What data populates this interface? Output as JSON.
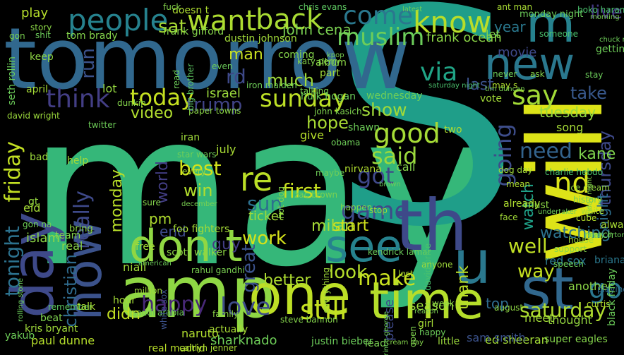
{
  "words": [
    {
      "text": "may",
      "color": "#35b779"
    },
    {
      "text": "S",
      "color": "#1f9e89"
    },
    {
      "text": "tomorrow",
      "color": "#31688e"
    },
    {
      "text": "new",
      "color": "#2a788e"
    },
    {
      "text": "m",
      "color": "#26828e"
    },
    {
      "text": "will",
      "color": "#dde318"
    },
    {
      "text": "day",
      "color": "#3e4989"
    },
    {
      "text": "now",
      "color": "#3b528b"
    },
    {
      "text": "amp",
      "color": "#8fd744"
    },
    {
      "text": "one",
      "color": "#bddf26"
    },
    {
      "text": "time",
      "color": "#b5de2b"
    },
    {
      "text": "st",
      "color": "#31688e"
    },
    {
      "text": "th",
      "color": "#3e4989"
    },
    {
      "text": "u",
      "color": "#2a788e"
    },
    {
      "text": "see",
      "color": "#26828e"
    },
    {
      "text": "don t",
      "color": "#90d743"
    },
    {
      "text": "people",
      "color": "#26828e"
    },
    {
      "text": "want",
      "color": "#addc30"
    },
    {
      "text": "back",
      "color": "#a8db34"
    },
    {
      "text": "come",
      "color": "#2a788e"
    },
    {
      "text": "know",
      "color": "#b8de29"
    },
    {
      "text": "muslim",
      "color": "#6ccd5a"
    },
    {
      "text": "think",
      "color": "#433e85"
    },
    {
      "text": "today",
      "color": "#c5e021"
    },
    {
      "text": "sunday",
      "color": "#bddf26"
    },
    {
      "text": "via",
      "color": "#20a486"
    },
    {
      "text": "say",
      "color": "#a2da37"
    },
    {
      "text": "take",
      "color": "#38588c"
    },
    {
      "text": "good",
      "color": "#a5db36"
    },
    {
      "text": "show",
      "color": "#a0da39"
    },
    {
      "text": "said",
      "color": "#9bd93c"
    },
    {
      "text": "need",
      "color": "#33638d"
    },
    {
      "text": "re",
      "color": "#bbdf27"
    },
    {
      "text": "nd",
      "color": "#dae319"
    },
    {
      "text": "got",
      "color": "#3f4889"
    },
    {
      "text": "going",
      "color": "#3d4d8a"
    },
    {
      "text": "friday",
      "color": "#c2df23"
    },
    {
      "text": "tonight",
      "color": "#2c728e"
    },
    {
      "text": "sun",
      "color": "#2d708e"
    },
    {
      "text": "game",
      "color": "#3e4a89"
    },
    {
      "text": "first",
      "color": "#c8e020"
    },
    {
      "text": "win",
      "color": "#b2dd2d"
    },
    {
      "text": "best",
      "color": "#d2e21b"
    },
    {
      "text": "monday",
      "color": "#b8de29"
    },
    {
      "text": "work",
      "color": "#d5e21a"
    },
    {
      "text": "milan",
      "color": "#a5db36"
    },
    {
      "text": "start",
      "color": "#d0e11c"
    },
    {
      "text": "make",
      "color": "#c8e020"
    },
    {
      "text": "look",
      "color": "#b5de2b"
    },
    {
      "text": "well",
      "color": "#c0df25"
    },
    {
      "text": "way",
      "color": "#c5e021"
    },
    {
      "text": "go",
      "color": "#2a768e"
    },
    {
      "text": "saturday",
      "color": "#b0dd2f"
    },
    {
      "text": "love",
      "color": "#3e4c8a"
    },
    {
      "text": "still",
      "color": "#c5e021"
    },
    {
      "text": "happy",
      "color": "#482878"
    },
    {
      "text": "christian",
      "color": "#2f6b8e"
    },
    {
      "text": "didn",
      "color": "#c2df23"
    },
    {
      "text": "video",
      "color": "#b0dd2f"
    },
    {
      "text": "hope",
      "color": "#a8db34"
    },
    {
      "text": "thank",
      "color": "#bbdf27"
    },
    {
      "text": "watch",
      "color": "#1fa188"
    },
    {
      "text": "really",
      "color": "#3e4989"
    },
    {
      "text": "last",
      "color": "#3b528b"
    },
    {
      "text": "guy",
      "color": "#433e85"
    },
    {
      "text": "israel",
      "color": "#9bd93c"
    },
    {
      "text": "much",
      "color": "#9fda3a"
    },
    {
      "text": "trump",
      "color": "#414487"
    },
    {
      "text": "sat",
      "color": "#a8db34"
    },
    {
      "text": "year",
      "color": "#2a788e"
    },
    {
      "text": "live",
      "color": "#453882"
    },
    {
      "text": "man",
      "color": "#c8e020"
    },
    {
      "text": "better",
      "color": "#addc30"
    },
    {
      "text": "top",
      "color": "#2f6c8e"
    },
    {
      "text": "great",
      "color": "#3b528b"
    },
    {
      "text": "watching",
      "color": "#2c738e"
    },
    {
      "text": "tuesday",
      "color": "#95d840"
    },
    {
      "text": "wednesday",
      "color": "#6ece58"
    },
    {
      "text": "thursday",
      "color": "#3e4989"
    },
    {
      "text": "night",
      "color": "#2e6f8e"
    },
    {
      "text": "islam",
      "color": "#8bd646"
    },
    {
      "text": "end",
      "color": "#3e4989"
    },
    {
      "text": "ticket",
      "color": "#a0da39"
    },
    {
      "text": "pm",
      "color": "#b0dd2f"
    },
    {
      "text": "season",
      "color": "#9bd93c"
    },
    {
      "text": "kane",
      "color": "#7fd34e"
    },
    {
      "text": "world",
      "color": "#433e85"
    },
    {
      "text": "play",
      "color": "#b5de2b"
    },
    {
      "text": "john cena",
      "color": "#7ad151"
    },
    {
      "text": "frank ocean",
      "color": "#8bd646"
    },
    {
      "text": "tom brady",
      "color": "#84d44b"
    },
    {
      "text": "frank gifford",
      "color": "#85d54a"
    },
    {
      "text": "dustin johnson",
      "color": "#a0da39"
    },
    {
      "text": "monday night",
      "color": "#6ccd5a"
    },
    {
      "text": "chris evans",
      "color": "#5ec962"
    },
    {
      "text": "ant man",
      "color": "#a8db34"
    },
    {
      "text": "boko haram",
      "color": "#4ac16d"
    },
    {
      "text": "movie",
      "color": "#3e4989"
    },
    {
      "text": "kris bryant",
      "color": "#9fda3a"
    },
    {
      "text": "paul dunne",
      "color": "#b5de2b"
    },
    {
      "text": "yakub",
      "color": "#6ece58"
    },
    {
      "text": "remember",
      "color": "#5ec962"
    },
    {
      "text": "real madrid",
      "color": "#b8de29"
    },
    {
      "text": "caitlyn jenner",
      "color": "#a8db34"
    },
    {
      "text": "naruto",
      "color": "#b0dd2f"
    },
    {
      "text": "sharknado",
      "color": "#6ece58"
    },
    {
      "text": "justin bieber",
      "color": "#6ccd5a"
    },
    {
      "text": "lead",
      "color": "#7ad151"
    },
    {
      "text": "cream day",
      "color": "#84d44b"
    },
    {
      "text": "ed sheeran",
      "color": "#a2da37"
    },
    {
      "text": "super eagles",
      "color": "#84d44b"
    },
    {
      "text": "little",
      "color": "#9bd93c"
    },
    {
      "text": "foo fighters",
      "color": "#a5db36"
    },
    {
      "text": "scott walker",
      "color": "#8fd744"
    },
    {
      "text": "rahul gandhi",
      "color": "#7ad151"
    },
    {
      "text": "niall",
      "color": "#a0da39"
    },
    {
      "text": "saudi arabia",
      "color": "#6ece58"
    },
    {
      "text": "white sox",
      "color": "#3b528b"
    },
    {
      "text": "steve bannon",
      "color": "#84d44b"
    },
    {
      "text": "kendrick lamar",
      "color": "#6ccd5a"
    },
    {
      "text": "david price",
      "color": "#4ac16d"
    },
    {
      "text": "red sox",
      "color": "#2a788e"
    },
    {
      "text": "briana",
      "color": "#2a788e"
    },
    {
      "text": "thought",
      "color": "#95d840"
    },
    {
      "text": "another",
      "color": "#8bd646"
    },
    {
      "text": "meet",
      "color": "#a2da37"
    },
    {
      "text": "curtis",
      "color": "#b2dd2d"
    },
    {
      "text": "playing",
      "color": "#2f6c8e"
    },
    {
      "text": "august",
      "color": "#8fd744"
    },
    {
      "text": "always",
      "color": "#a8db34"
    },
    {
      "text": "march",
      "color": "#6ece58"
    },
    {
      "text": "already",
      "color": "#addc30"
    },
    {
      "text": "nirvana",
      "color": "#b0dd2f"
    },
    {
      "text": "star wars",
      "color": "#6ece58"
    },
    {
      "text": "july",
      "color": "#a8db34"
    },
    {
      "text": "iran",
      "color": "#9fda3a"
    },
    {
      "text": "zac brown",
      "color": "#7ad151"
    },
    {
      "text": "hot dog",
      "color": "#84d44b"
    },
    {
      "text": "paper towns",
      "color": "#8bd646"
    },
    {
      "text": "john kasich",
      "color": "#7fd34e"
    },
    {
      "text": "hulk hogan",
      "color": "#6ccd5a"
    },
    {
      "text": "david wright",
      "color": "#9bd93c"
    },
    {
      "text": "charlie hebdo",
      "color": "#4ac16d"
    },
    {
      "text": "ice cream",
      "color": "#95d840"
    },
    {
      "text": "obama",
      "color": "#6ece58"
    },
    {
      "text": "give",
      "color": "#b5de2b"
    },
    {
      "text": "two",
      "color": "#addc30"
    },
    {
      "text": "shawn",
      "color": "#6ece58"
    },
    {
      "text": "call",
      "color": "#84d44b"
    },
    {
      "text": "song",
      "color": "#a5db36"
    },
    {
      "text": "vote",
      "color": "#a2da37"
    },
    {
      "text": "anyone",
      "color": "#9fda3a"
    },
    {
      "text": "lost",
      "color": "#a8db34"
    },
    {
      "text": "free",
      "color": "#a5db36"
    },
    {
      "text": "bring",
      "color": "#8bd646"
    },
    {
      "text": "ask",
      "color": "#84d44b"
    },
    {
      "text": "stay",
      "color": "#6ccd5a"
    },
    {
      "text": "getting",
      "color": "#6ece58"
    },
    {
      "text": "let",
      "color": "#84d44b"
    },
    {
      "text": "someone",
      "color": "#4ac16d"
    },
    {
      "text": "doesn t",
      "color": "#addc30"
    },
    {
      "text": "read",
      "color": "#6ccd5a"
    },
    {
      "text": "coming",
      "color": "#84d44b"
    },
    {
      "text": "album",
      "color": "#8bd646"
    },
    {
      "text": "part",
      "color": "#9fda3a"
    },
    {
      "text": "talking",
      "color": "#7ad151"
    },
    {
      "text": "never",
      "color": "#6ece58"
    },
    {
      "text": "rd",
      "color": "#3e4989"
    },
    {
      "text": "even",
      "color": "#6ccd5a"
    },
    {
      "text": "lot",
      "color": "#95d840"
    },
    {
      "text": "iron maiden",
      "color": "#6ece58"
    },
    {
      "text": "big brother",
      "color": "#5ec962"
    },
    {
      "text": "katy perry",
      "color": "#84d44b"
    },
    {
      "text": "kpop",
      "color": "#7ad151"
    },
    {
      "text": "every",
      "color": "#a0da39"
    },
    {
      "text": "hour",
      "color": "#a2da37"
    },
    {
      "text": "talk",
      "color": "#a8db34"
    },
    {
      "text": "team",
      "color": "#84d44b"
    },
    {
      "text": "real",
      "color": "#8bd646"
    },
    {
      "text": "beat",
      "color": "#7fd34e"
    },
    {
      "text": "gt",
      "color": "#95d840"
    },
    {
      "text": "eid",
      "color": "#a5db36"
    },
    {
      "text": "bad",
      "color": "#9bd93c"
    },
    {
      "text": "help",
      "color": "#a0da39"
    },
    {
      "text": "twitter",
      "color": "#6ece58"
    },
    {
      "text": "dunkin",
      "color": "#84d44b"
    },
    {
      "text": "keep",
      "color": "#8fd744"
    },
    {
      "text": "run",
      "color": "#3b528b"
    },
    {
      "text": "story",
      "color": "#8bd646"
    },
    {
      "text": "shit",
      "color": "#6ccd5a"
    },
    {
      "text": "gon",
      "color": "#7ad151"
    },
    {
      "text": "seth rollin",
      "color": "#6ccd5a"
    },
    {
      "text": "april",
      "color": "#a5db36"
    },
    {
      "text": "fuck",
      "color": "#84d44b"
    },
    {
      "text": "latest",
      "color": "#6ccd5a"
    },
    {
      "text": "morning",
      "color": "#7ad151"
    },
    {
      "text": "chuck norris",
      "color": "#6ece58"
    },
    {
      "text": "may s",
      "color": "#b0dd2f"
    },
    {
      "text": "friday night",
      "color": "#84d44b"
    },
    {
      "text": "black friday",
      "color": "#6ccd5a"
    },
    {
      "text": "dog day",
      "color": "#9fda3a"
    },
    {
      "text": "history",
      "color": "#6ece58"
    },
    {
      "text": "cube",
      "color": "#b5de2b"
    },
    {
      "text": "white",
      "color": "#a8db34"
    },
    {
      "text": "face",
      "color": "#a2da37"
    },
    {
      "text": "must",
      "color": "#8bd646"
    },
    {
      "text": "mean",
      "color": "#addc30"
    },
    {
      "text": "happen",
      "color": "#84d44b"
    },
    {
      "text": "stop",
      "color": "#9bd93c"
    },
    {
      "text": "maybe",
      "color": "#6ece58"
    },
    {
      "text": "brown",
      "color": "#6ccd5a"
    },
    {
      "text": "tim duncan",
      "color": "#7ad151"
    },
    {
      "text": "saturday night",
      "color": "#4ac16d"
    },
    {
      "text": "gon na",
      "color": "#6ece58"
    },
    {
      "text": "sure",
      "color": "#84d44b"
    },
    {
      "text": "december",
      "color": "#7ad151"
    },
    {
      "text": "american",
      "color": "#6ccd5a"
    },
    {
      "text": "family",
      "color": "#8bd646"
    },
    {
      "text": "actually",
      "color": "#a8db34"
    },
    {
      "text": "million",
      "color": "#a0da39"
    },
    {
      "text": "rolling stone",
      "color": "#6ccd5a"
    },
    {
      "text": "everything",
      "color": "#9fda3a"
    },
    {
      "text": "reason",
      "color": "#7ad151"
    },
    {
      "text": "week",
      "color": "#8bd646"
    },
    {
      "text": "girl",
      "color": "#a5db36"
    },
    {
      "text": "happy",
      "color": "#6ccd5a"
    },
    {
      "text": "open",
      "color": "#7fd34e"
    },
    {
      "text": "please",
      "color": "#3e4989"
    },
    {
      "text": "prince george",
      "color": "#6ccd5a"
    },
    {
      "text": "sam smith",
      "color": "#3b528b"
    },
    {
      "text": "undertaker",
      "color": "#6ece58"
    },
    {
      "text": "support",
      "color": "#84d44b"
    },
    {
      "text": "speech",
      "color": "#6ccd5a"
    },
    {
      "text": "house",
      "color": "#a0da39"
    },
    {
      "text": "randy orton",
      "color": "#6ece58"
    }
  ]
}
